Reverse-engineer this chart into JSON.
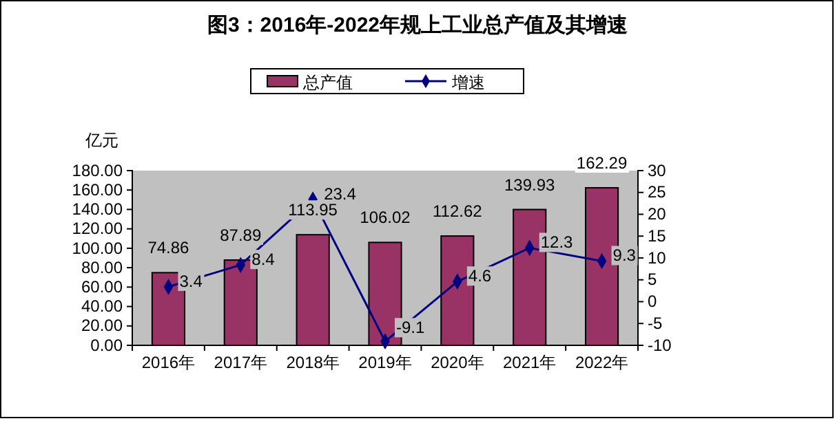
{
  "chart_data": {
    "type": "bar",
    "title": "图3：2016年-2022年规上工业总产值及其增速",
    "ylabel": "亿元",
    "categories": [
      "2016年",
      "2017年",
      "2018年",
      "2019年",
      "2020年",
      "2021年",
      "2022年"
    ],
    "series": [
      {
        "name": "总产值",
        "type": "bar",
        "color": "#993366",
        "values": [
          74.86,
          87.89,
          113.95,
          106.02,
          112.62,
          139.93,
          162.29
        ]
      },
      {
        "name": "增速",
        "type": "line",
        "axis": "y2",
        "color": "#000080",
        "marker": "diamond",
        "values": [
          3.4,
          8.4,
          23.4,
          -9.1,
          4.6,
          12.3,
          9.3
        ]
      }
    ],
    "ylim": [
      0,
      180
    ],
    "yticks": [
      {
        "value": 0,
        "label": "0.00"
      },
      {
        "value": 20,
        "label": "20.00"
      },
      {
        "value": 40,
        "label": "40.00"
      },
      {
        "value": 60,
        "label": "60.00"
      },
      {
        "value": 80,
        "label": "80.00"
      },
      {
        "value": 100,
        "label": "100.00"
      },
      {
        "value": 120,
        "label": "120.00"
      },
      {
        "value": 140,
        "label": "140.00"
      },
      {
        "value": 160,
        "label": "160.00"
      },
      {
        "value": 180,
        "label": "180.00"
      }
    ],
    "y2lim": [
      -10,
      30
    ],
    "y2ticks": [
      -10,
      -5,
      0,
      5,
      10,
      15,
      20,
      25,
      30
    ],
    "data_labels": true,
    "legend": "top",
    "grid": false
  }
}
